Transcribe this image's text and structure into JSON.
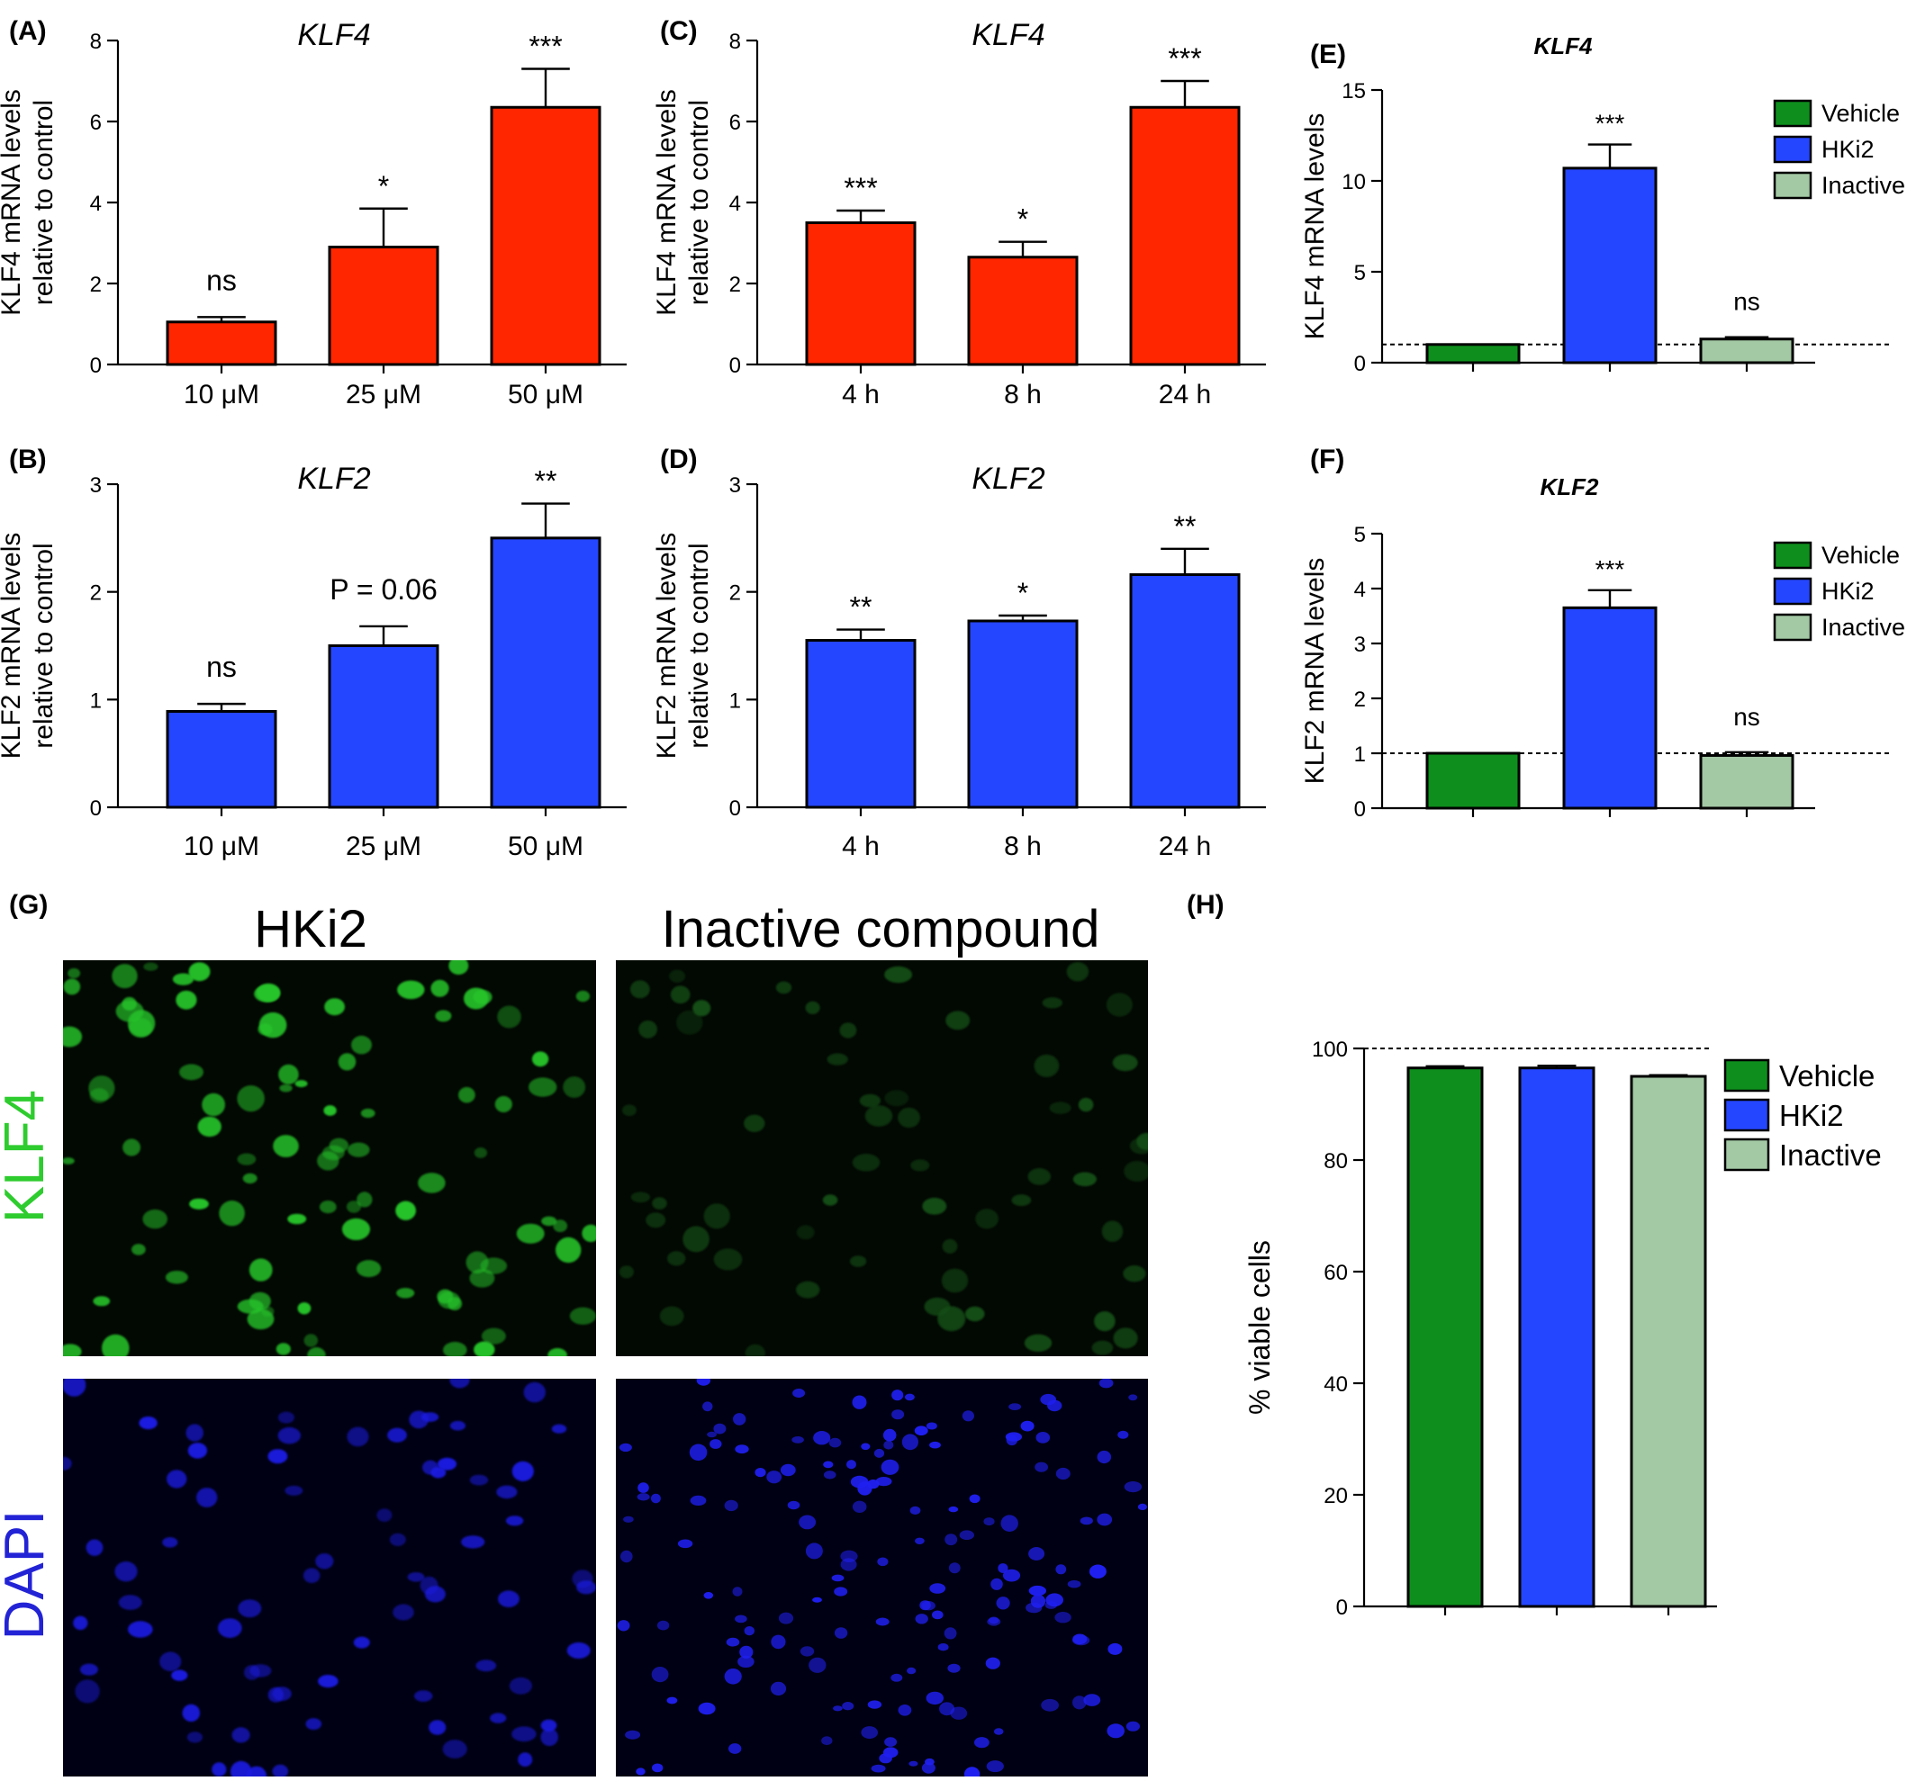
{
  "figure": {
    "panel_letters": [
      "(A)",
      "(B)",
      "(C)",
      "(D)",
      "(E)",
      "(F)",
      "(G)",
      "(H)"
    ]
  },
  "micrographs": {
    "col_titles": [
      "HKi2",
      "Inactive compound"
    ],
    "row_labels": [
      "KLF4",
      "DAPI"
    ],
    "row_colors": [
      "#2ecc2e",
      "#2323d6"
    ]
  },
  "colors": {
    "red": "#ff2600",
    "blue": "#2546ff",
    "green": "#0e8f1d",
    "lightgreen": "#a3c8a4"
  },
  "chart_data": [
    {
      "panel": "A",
      "type": "bar",
      "title": "KLF4",
      "ylabel_lines": [
        "KLF4 mRNA levels",
        "relative to control"
      ],
      "categories": [
        "10 μM",
        "25 μM",
        "50 μM"
      ],
      "values": [
        1.05,
        2.9,
        6.35
      ],
      "errors": [
        0.12,
        0.95,
        0.95
      ],
      "annotations": [
        "ns",
        "*",
        "***"
      ],
      "ylim": [
        0,
        8
      ],
      "yticks": [
        0,
        2,
        4,
        6,
        8
      ],
      "color": "#ff2600"
    },
    {
      "panel": "B",
      "type": "bar",
      "title": "KLF2",
      "ylabel_lines": [
        "KLF2 mRNA levels",
        "relative to control"
      ],
      "categories": [
        "10 μM",
        "25 μM",
        "50 μM"
      ],
      "values": [
        0.89,
        1.5,
        2.5
      ],
      "errors": [
        0.07,
        0.18,
        0.32
      ],
      "annotations": [
        "ns",
        "P = 0.06",
        "**"
      ],
      "ylim": [
        0,
        3
      ],
      "yticks": [
        0,
        1,
        2,
        3
      ],
      "color": "#2546ff"
    },
    {
      "panel": "C",
      "type": "bar",
      "title": "KLF4",
      "ylabel_lines": [
        "KLF4 mRNA levels",
        "relative to control"
      ],
      "categories": [
        "4 h",
        "8 h",
        "24 h"
      ],
      "values": [
        3.5,
        2.65,
        6.35
      ],
      "errors": [
        0.3,
        0.38,
        0.65
      ],
      "annotations": [
        "***",
        "*",
        "***"
      ],
      "ylim": [
        0,
        8
      ],
      "yticks": [
        0,
        2,
        4,
        6,
        8
      ],
      "color": "#ff2600"
    },
    {
      "panel": "D",
      "type": "bar",
      "title": "KLF2",
      "ylabel_lines": [
        "KLF2 mRNA levels",
        "relative to control"
      ],
      "categories": [
        "4 h",
        "8 h",
        "24 h"
      ],
      "values": [
        1.55,
        1.73,
        2.16
      ],
      "errors": [
        0.1,
        0.05,
        0.24
      ],
      "annotations": [
        "**",
        "*",
        "**"
      ],
      "ylim": [
        0,
        3
      ],
      "yticks": [
        0,
        1,
        2,
        3
      ],
      "color": "#2546ff"
    },
    {
      "panel": "E",
      "type": "bar",
      "title": "KLF4",
      "ylabel_lines": [
        "KLF4 mRNA levels"
      ],
      "categories": [
        "Vehicle",
        "HKi2",
        "Inactive"
      ],
      "values": [
        1.0,
        10.7,
        1.3
      ],
      "errors": [
        0,
        1.3,
        0.1
      ],
      "annotations": [
        "",
        "***",
        "ns"
      ],
      "ylim": [
        0,
        15
      ],
      "yticks": [
        0,
        5,
        10,
        15
      ],
      "colors": [
        "#0e8f1d",
        "#2546ff",
        "#a3c8a4"
      ],
      "reference_line": 1,
      "legend": [
        "Vehicle",
        "HKi2",
        "Inactive"
      ],
      "legend_position": "top-right"
    },
    {
      "panel": "F",
      "type": "bar",
      "title": "KLF2",
      "ylabel_lines": [
        "KLF2 mRNA levels"
      ],
      "categories": [
        "Vehicle",
        "HKi2",
        "Inactive"
      ],
      "values": [
        1.0,
        3.65,
        0.96
      ],
      "errors": [
        0,
        0.32,
        0.06
      ],
      "annotations": [
        "",
        "***",
        "ns"
      ],
      "ylim": [
        0,
        5
      ],
      "yticks": [
        0,
        1,
        2,
        3,
        4,
        5
      ],
      "colors": [
        "#0e8f1d",
        "#2546ff",
        "#a3c8a4"
      ],
      "reference_line": 1,
      "legend": [
        "Vehicle",
        "HKi2",
        "Inactive"
      ],
      "legend_position": "top-right"
    },
    {
      "panel": "H",
      "type": "bar",
      "title": "",
      "ylabel_lines": [
        "% viable cells"
      ],
      "categories": [
        "Vehicle",
        "HKi2",
        "Inactive"
      ],
      "values": [
        96.5,
        96.5,
        95.0
      ],
      "errors": [
        0.3,
        0.4,
        0.2
      ],
      "annotations": [
        "",
        "",
        ""
      ],
      "ylim": [
        0,
        100
      ],
      "yticks": [
        0,
        20,
        40,
        60,
        80,
        100
      ],
      "colors": [
        "#0e8f1d",
        "#2546ff",
        "#a3c8a4"
      ],
      "reference_line": 100,
      "legend": [
        "Vehicle",
        "HKi2",
        "Inactive"
      ],
      "legend_position": "top-right"
    }
  ]
}
